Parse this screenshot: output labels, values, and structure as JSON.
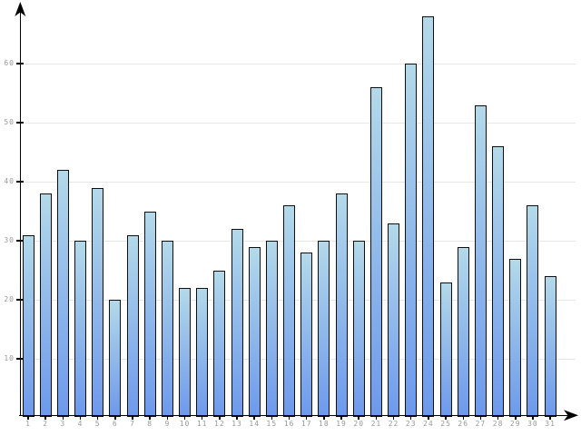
{
  "chart_data": {
    "type": "bar",
    "title": "",
    "xlabel": "",
    "ylabel": "",
    "categories": [
      "1",
      "2",
      "3",
      "4",
      "5",
      "6",
      "7",
      "8",
      "9",
      "10",
      "11",
      "12",
      "13",
      "14",
      "15",
      "16",
      "17",
      "18",
      "19",
      "20",
      "21",
      "22",
      "23",
      "24",
      "25",
      "26",
      "27",
      "28",
      "29",
      "30",
      "31"
    ],
    "values": [
      31,
      38,
      42,
      30,
      39,
      20,
      31,
      35,
      30,
      22,
      22,
      25,
      32,
      29,
      30,
      36,
      28,
      30,
      38,
      30,
      56,
      33,
      60,
      68,
      23,
      29,
      53,
      46,
      27,
      36,
      24
    ],
    "ylim": [
      0,
      70
    ],
    "yticks": [
      10,
      20,
      30,
      40,
      50,
      60
    ],
    "ytick_labels": [
      "10",
      "20",
      "30",
      "40",
      "50",
      "60"
    ],
    "grid": true,
    "legend": false,
    "colors": {
      "background": "#ffffff",
      "bar_gradient_top": "#b3d9e9",
      "bar_gradient_bottom": "#6d99ec",
      "bar_border": "#101010",
      "axis": "#000000",
      "gridline": "#e7e7e7",
      "tick_label": "#999999"
    }
  }
}
